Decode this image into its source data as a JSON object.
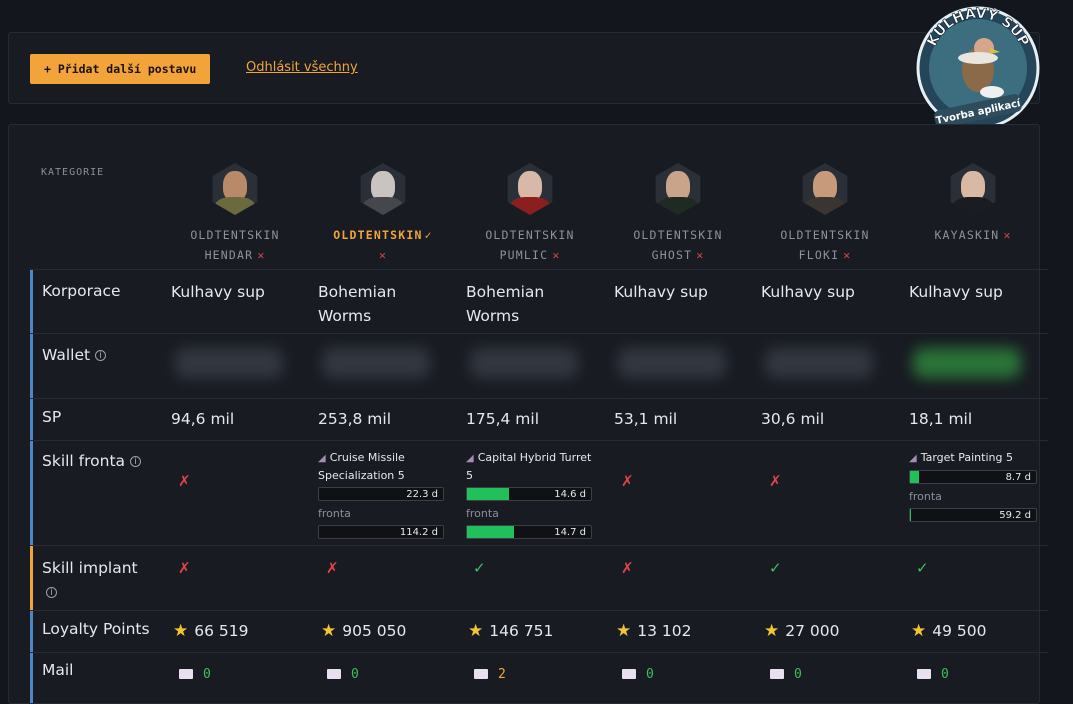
{
  "toolbar": {
    "add_label": "+ Přidat další postavu",
    "logout_label": "Odhlásit všechny"
  },
  "logo": {
    "title": "KULHAVÝ SUP",
    "subtitle": "Tvorba aplikací"
  },
  "table": {
    "category_header": "KATEGORIE",
    "characters": [
      {
        "line1": "OLDTENTSKIN",
        "line2": "HENDAR",
        "status": "✕",
        "face": "#b98a6a",
        "body": "#6b6a3f"
      },
      {
        "line1": "OLDTENTSKIN",
        "line2": "",
        "status": "✓",
        "status2": "✕",
        "face": "#c9c4bf",
        "body": "#45474d"
      },
      {
        "line1": "OLDTENTSKIN",
        "line2": "PUMLIC",
        "status": "✕",
        "face": "#d8b8a8",
        "body": "#8b1f1f"
      },
      {
        "line1": "OLDTENTSKIN",
        "line2": "GHOST",
        "status": "✕",
        "face": "#caa48a",
        "body": "#1e2a22"
      },
      {
        "line1": "OLDTENTSKIN",
        "line2": "FLOKI",
        "status": "✕",
        "face": "#c79a7c",
        "body": "#3a3530"
      },
      {
        "line1": "KAYASKIN",
        "line2": "",
        "status": "✕",
        "face": "#d9b9a4",
        "body": "#1a1c22"
      }
    ],
    "rows": {
      "corporation": {
        "label": "Korporace",
        "values": [
          "Kulhavy sup",
          "Bohemian Worms",
          "Bohemian Worms",
          "Kulhavy sup",
          "Kulhavy sup",
          "Kulhavy sup"
        ]
      },
      "wallet": {
        "label": "Wallet",
        "info": "i"
      },
      "sp": {
        "label": "SP",
        "values": [
          "94,6 mil",
          "253,8 mil",
          "175,4 mil",
          "53,1 mil",
          "30,6 mil",
          "18,1 mil"
        ]
      },
      "skill_queue": {
        "label": "Skill fronta",
        "info": "i",
        "none_mark": "✗",
        "queue_label": "fronta",
        "entries": [
          null,
          {
            "skill": "Cruise Missile Specialization 5",
            "current": "22.3 d",
            "current_fill": 0,
            "queue": "114.2 d",
            "queue_fill": 0
          },
          {
            "skill": "Capital Hybrid Turret 5",
            "current": "14.6 d",
            "current_fill": 0.34,
            "queue": "14.7 d",
            "queue_fill": 0.38
          },
          null,
          null,
          {
            "skill": "Target Painting 5",
            "current": "8.7 d",
            "current_fill": 0.07,
            "queue": "59.2 d",
            "queue_fill": 0.01
          }
        ]
      },
      "implant": {
        "label": "Skill implant",
        "info": "i",
        "values": [
          "✗",
          "✗",
          "✓",
          "✗",
          "✓",
          "✓"
        ]
      },
      "loyalty": {
        "label": "Loyalty Points",
        "star": "★",
        "values": [
          "66 519",
          "905 050",
          "146 751",
          "13 102",
          "27 000",
          "49 500"
        ]
      },
      "mail": {
        "label": "Mail",
        "values": [
          "0",
          "0",
          "2",
          "0",
          "0",
          "0"
        ]
      }
    }
  }
}
